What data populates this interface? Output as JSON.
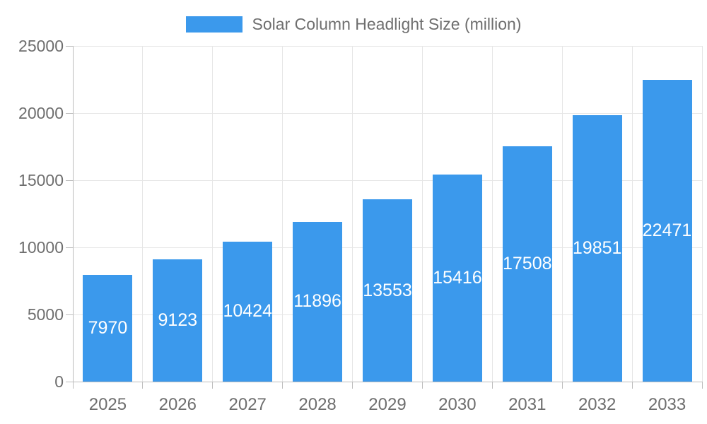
{
  "legend": {
    "label": "Solar Column Headlight Size (million)"
  },
  "chart_data": {
    "type": "bar",
    "title": "Solar Column Headlight Size (million)",
    "categories": [
      "2025",
      "2026",
      "2027",
      "2028",
      "2029",
      "2030",
      "2031",
      "2032",
      "2033"
    ],
    "values": [
      7970,
      9123,
      10424,
      11896,
      13553,
      15416,
      17508,
      19851,
      22471
    ],
    "series": [
      {
        "name": "Solar Column Headlight Size (million)",
        "values": [
          7970,
          9123,
          10424,
          11896,
          13553,
          15416,
          17508,
          19851,
          22471
        ]
      }
    ],
    "xlabel": "",
    "ylabel": "",
    "ylim": [
      0,
      25000
    ],
    "y_ticks": [
      0,
      5000,
      10000,
      15000,
      20000,
      25000
    ],
    "grid": true,
    "legend_position": "top",
    "bar_labels_inside": true,
    "colors": {
      "bar": "#3B99EC",
      "bar_label": "#FFFFFF",
      "axis_text": "#6E6E6E",
      "gridline": "#E6E6E6",
      "axis_line": "#BDBDBD"
    }
  }
}
